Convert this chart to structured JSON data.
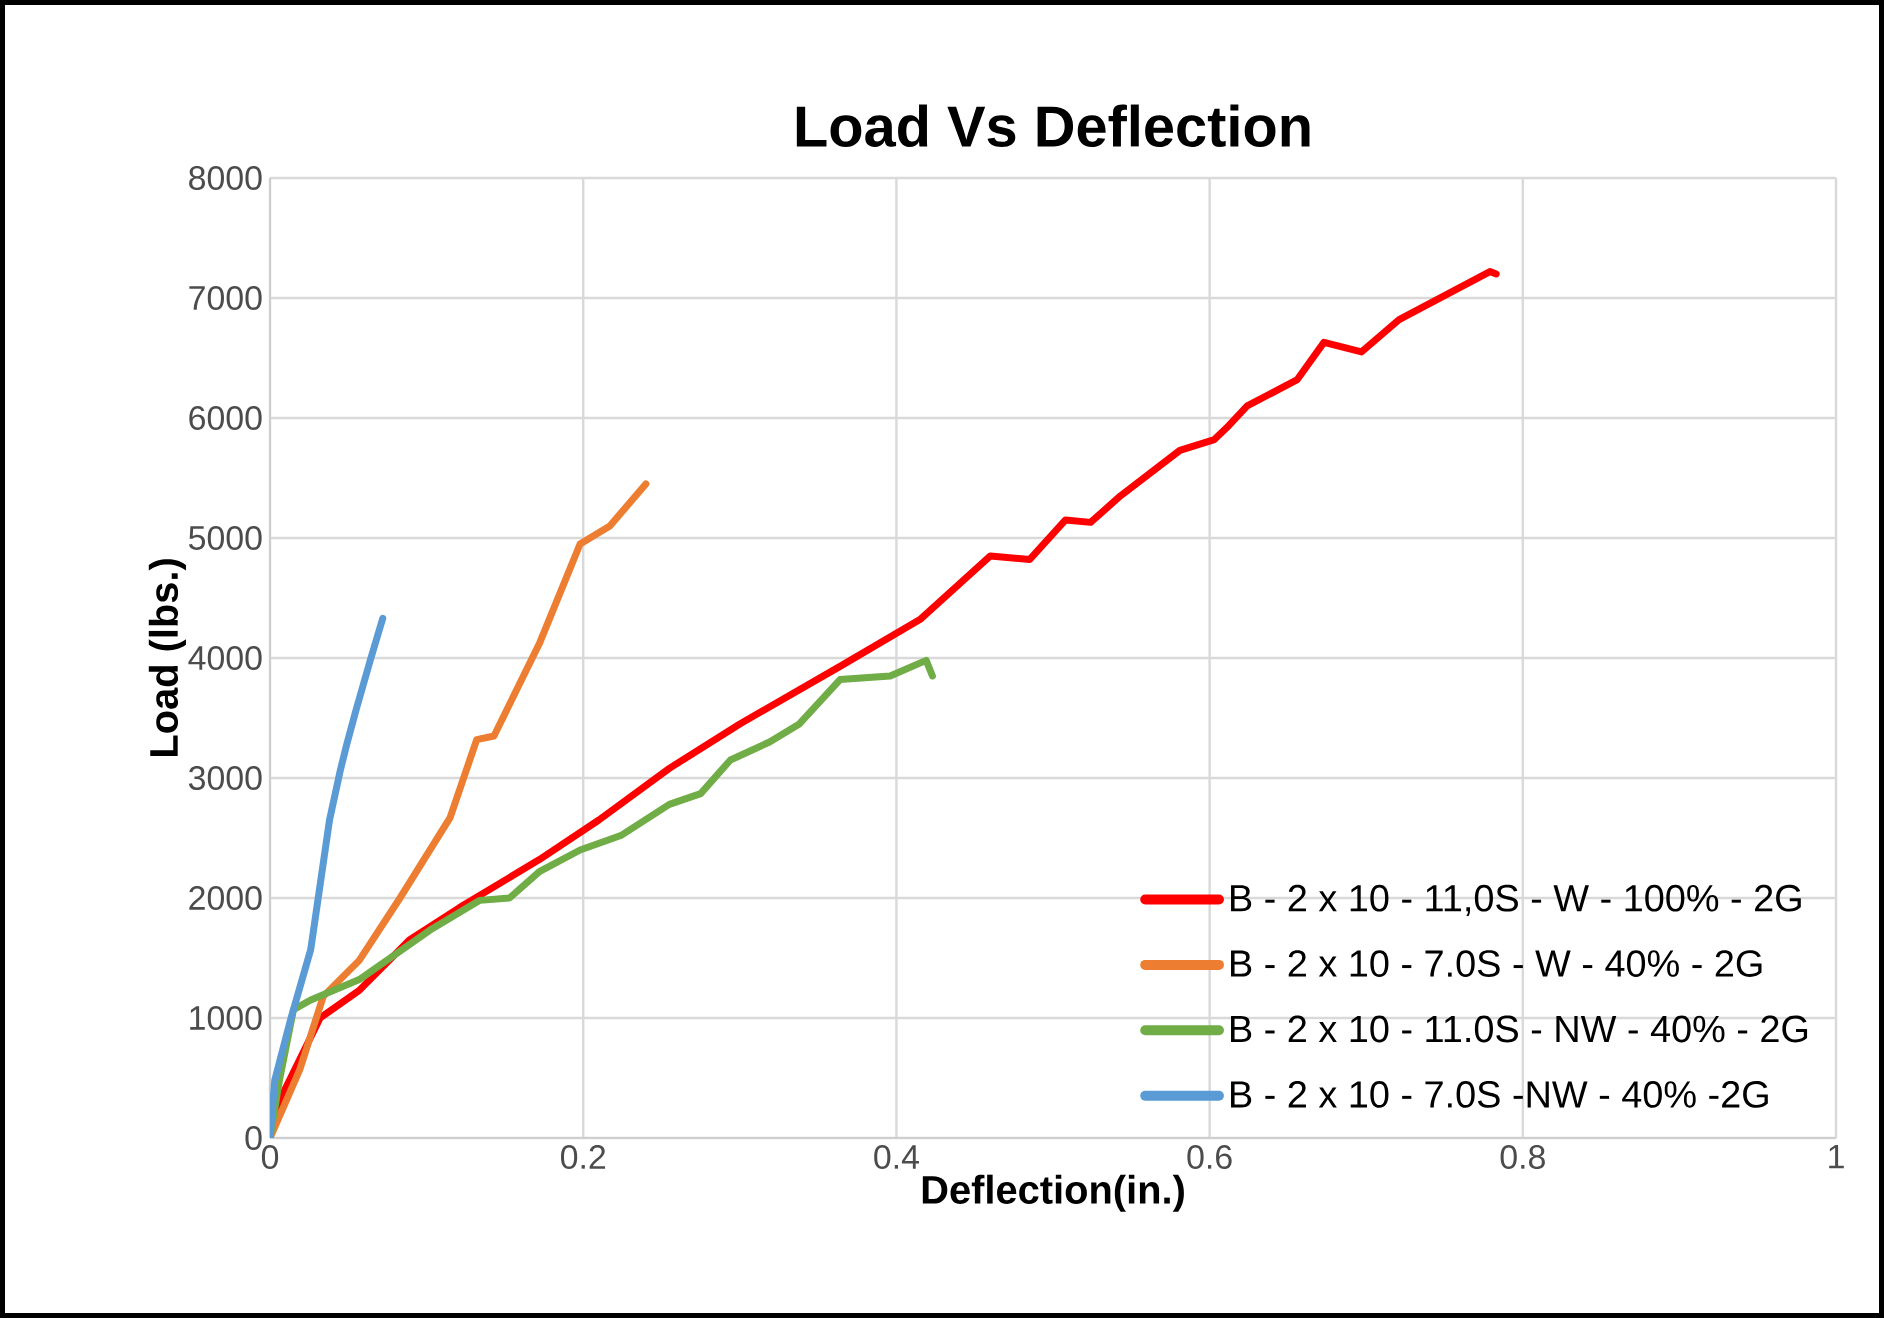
{
  "chart_data": {
    "type": "line",
    "title": "Load Vs Deflection",
    "xlabel": "Deflection(in.)",
    "ylabel": "Load (lbs.)",
    "xlim": [
      0,
      1
    ],
    "ylim": [
      0,
      8000
    ],
    "xticks": [
      0,
      0.2,
      0.4,
      0.6,
      0.8,
      1
    ],
    "yticks": [
      0,
      1000,
      2000,
      3000,
      4000,
      5000,
      6000,
      7000,
      8000
    ],
    "grid": true,
    "legend": "bottom right",
    "marker": "none",
    "line_style": "solid",
    "series": [
      {
        "name": "B - 2 x 10 - 11,0S - W - 100% - 2G",
        "color": "#ff0000",
        "x": [
          0,
          0.003,
          0.032,
          0.057,
          0.089,
          0.121,
          0.172,
          0.21,
          0.255,
          0.3,
          0.364,
          0.415,
          0.46,
          0.485,
          0.508,
          0.524,
          0.543,
          0.581,
          0.603,
          0.611,
          0.624,
          0.656,
          0.673,
          0.697,
          0.721,
          0.779,
          0.783
        ],
        "values": [
          0,
          230,
          1000,
          1230,
          1650,
          1920,
          2320,
          2650,
          3080,
          3450,
          3930,
          4320,
          4850,
          4820,
          5150,
          5130,
          5350,
          5730,
          5820,
          5920,
          6100,
          6320,
          6630,
          6550,
          6820,
          7220,
          7200
        ]
      },
      {
        "name": "B - 2 x 10 - 7.0S - W - 40% - 2G",
        "color": "#ed7d31",
        "x": [
          0,
          0.019,
          0.034,
          0.057,
          0.083,
          0.115,
          0.132,
          0.143,
          0.172,
          0.198,
          0.217,
          0.24
        ],
        "values": [
          0,
          570,
          1180,
          1480,
          2000,
          2670,
          3320,
          3350,
          4120,
          4950,
          5100,
          5450
        ]
      },
      {
        "name": "B - 2 x 10 - 11.0S - NW - 40% - 2G",
        "color": "#70ad47",
        "x": [
          0,
          0.006,
          0.015,
          0.026,
          0.057,
          0.102,
          0.134,
          0.153,
          0.172,
          0.198,
          0.224,
          0.255,
          0.275,
          0.294,
          0.319,
          0.338,
          0.364,
          0.396,
          0.419,
          0.423
        ],
        "values": [
          0,
          480,
          1070,
          1150,
          1320,
          1730,
          1980,
          2000,
          2220,
          2400,
          2520,
          2780,
          2870,
          3150,
          3300,
          3450,
          3820,
          3850,
          3980,
          3850
        ]
      },
      {
        "name": "B - 2 x 10 - 7.0S -NW - 40% -2G",
        "color": "#5b9bd5",
        "x": [
          0,
          0.003,
          0.013,
          0.026,
          0.038,
          0.045,
          0.049,
          0.055,
          0.064,
          0.072
        ],
        "values": [
          0,
          480,
          980,
          1570,
          2650,
          3070,
          3280,
          3570,
          3980,
          4330
        ]
      }
    ]
  }
}
